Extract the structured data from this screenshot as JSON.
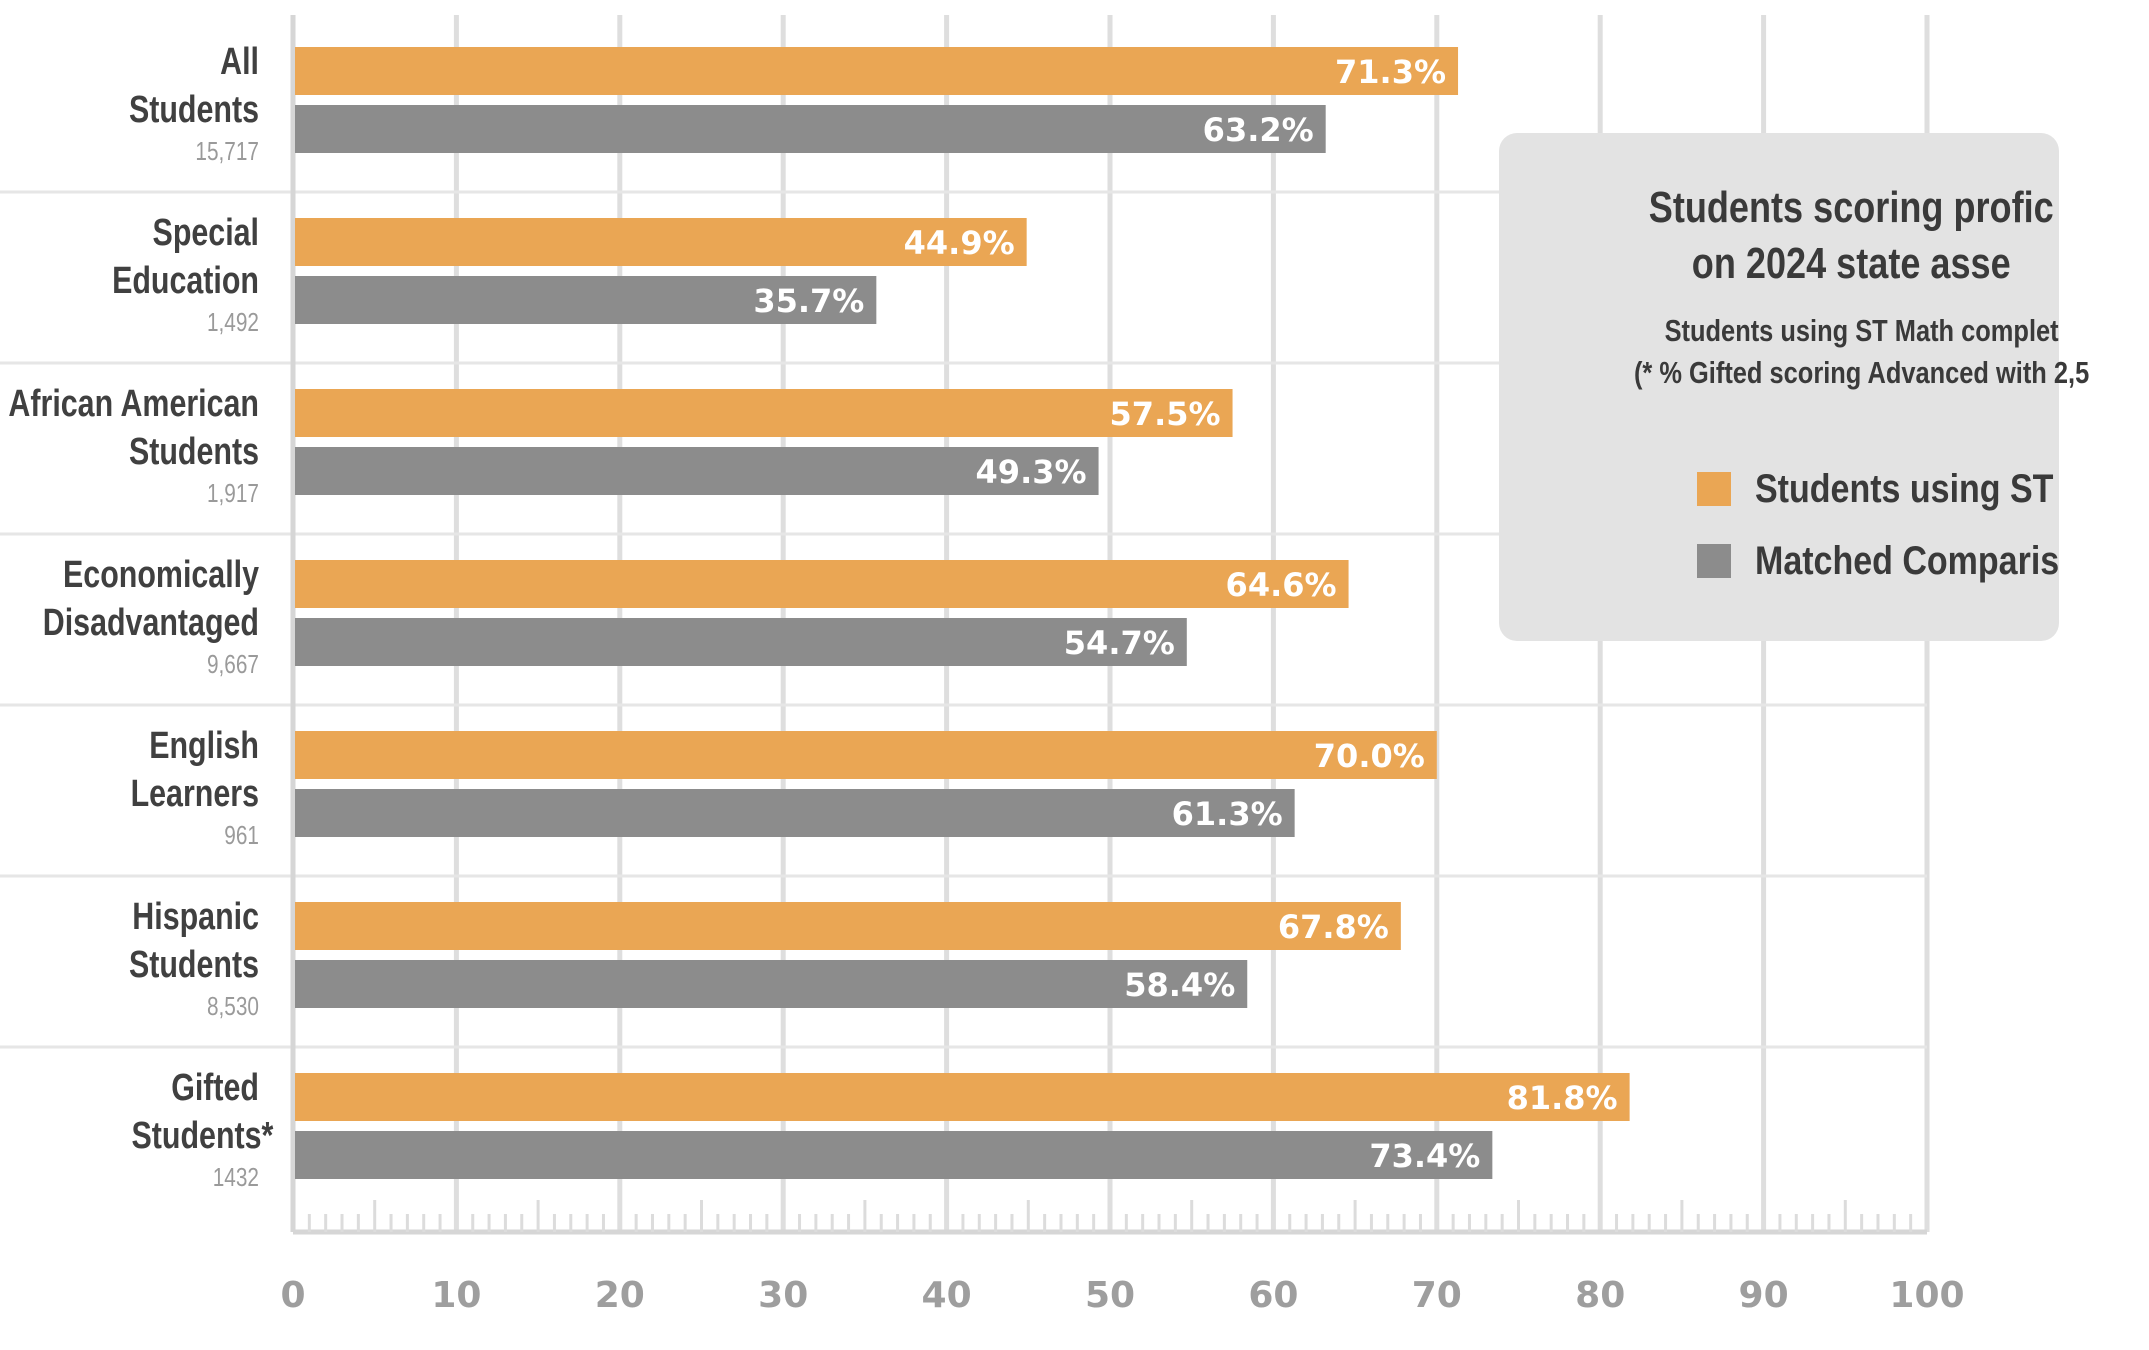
{
  "chart_data": {
    "type": "bar",
    "orientation": "horizontal",
    "categories": [
      [
        "All",
        "Students"
      ],
      [
        "Special",
        "Education"
      ],
      [
        "African American",
        "Students"
      ],
      [
        "Economically",
        "Disadvantaged"
      ],
      [
        "English",
        "Learners"
      ],
      [
        "Hispanic",
        "Students"
      ],
      [
        "Gifted",
        "Students*"
      ]
    ],
    "counts": [
      "15,717",
      "1,492",
      "1,917",
      "9,667",
      "961",
      "8,530",
      "1432"
    ],
    "series": [
      {
        "name": "Students using ST",
        "color": "#eaa654",
        "values": [
          71.3,
          44.9,
          57.5,
          64.6,
          70.0,
          67.8,
          81.8
        ],
        "labels": [
          "71.3%",
          "44.9%",
          "57.5%",
          "64.6%",
          "70.0%",
          "67.8%",
          "81.8%"
        ]
      },
      {
        "name": "Matched Comparis",
        "color": "#8c8c8c",
        "values": [
          63.2,
          35.7,
          49.3,
          54.7,
          61.3,
          58.4,
          73.4
        ],
        "labels": [
          "63.2%",
          "35.7%",
          "49.3%",
          "54.7%",
          "61.3%",
          "58.4%",
          "73.4%"
        ]
      }
    ],
    "xlim": [
      0,
      100
    ],
    "xticks": [
      0,
      10,
      20,
      30,
      40,
      50,
      60,
      70,
      80,
      90,
      100
    ],
    "grid": true,
    "legend_placement": "top-right",
    "title_lines": [
      "Students scoring profic",
      "on 2024 state asse"
    ],
    "subtitle_lines": [
      "Students using ST Math complet",
      "(* % Gifted scoring Advanced with 2,5"
    ]
  }
}
